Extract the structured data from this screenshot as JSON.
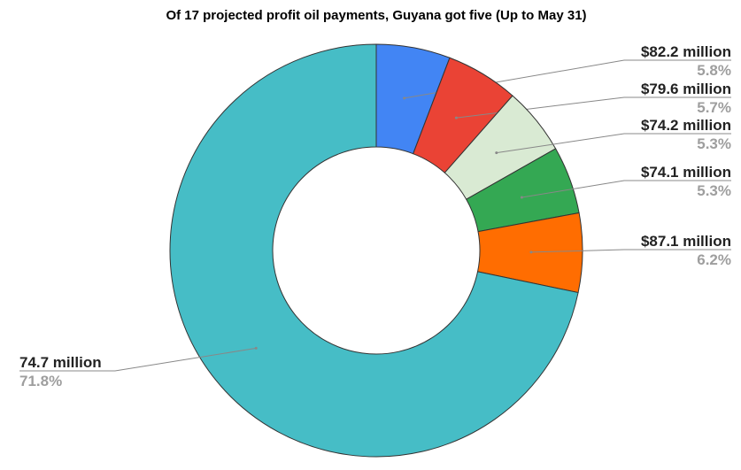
{
  "chart_data": {
    "type": "donut",
    "title": "Of 17 projected profit oil payments, Guyana got five (Up to May 31)",
    "categories": [
      "$82.2 million",
      "$79.6 million",
      "$74.2 million",
      "$74.1 million",
      "$87.1 million",
      "74.7 million"
    ],
    "values": [
      5.8,
      5.7,
      5.3,
      5.3,
      6.2,
      71.8
    ],
    "value_labels": [
      "5.8%",
      "5.7%",
      "5.3%",
      "5.3%",
      "6.2%",
      "71.8%"
    ],
    "colors": [
      "#4285f4",
      "#ea4335",
      "#d9ead3",
      "#34a853",
      "#ff6d01",
      "#46bdc6"
    ]
  }
}
